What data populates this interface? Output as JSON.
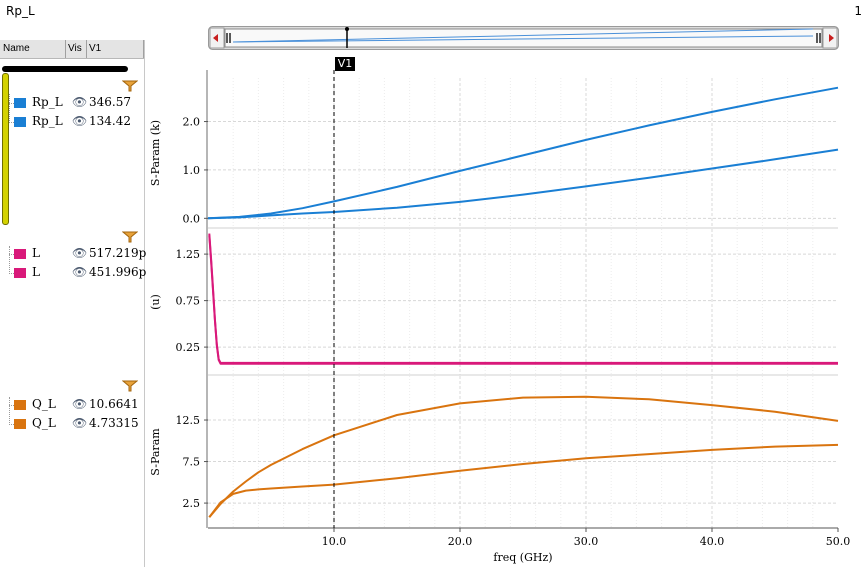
{
  "window": {
    "title": "Rp_L",
    "index_label": "1"
  },
  "table_header": {
    "name": "Name",
    "vis": "Vis",
    "v1": "V1"
  },
  "groups": [
    {
      "rows": [
        {
          "name": "Rp_L",
          "value": "346.57"
        },
        {
          "name": "Rp_L",
          "value": "134.42"
        }
      ]
    },
    {
      "rows": [
        {
          "name": "L",
          "value": "517.219p"
        },
        {
          "name": "L",
          "value": "451.996p"
        }
      ]
    },
    {
      "rows": [
        {
          "name": "Q_L",
          "value": "10.6641"
        },
        {
          "name": "Q_L",
          "value": "4.73315"
        }
      ]
    }
  ],
  "marker": {
    "label": "V1",
    "x": 10.0
  },
  "colors": {
    "blue": "#1a7fd4",
    "magenta": "#d9197a",
    "orange": "#d9740f",
    "yellow_bar": "#d4d200"
  },
  "icons": {
    "visibility": "eye-icon",
    "filter": "funnel-icon"
  },
  "chart_data": [
    {
      "type": "line",
      "ylabel": "S-Param (k)",
      "xlim": [
        0,
        50
      ],
      "ylim": [
        -0.2,
        2.9
      ],
      "yticks": [
        0.0,
        1.0,
        2.0
      ],
      "ytick_labels": [
        "0.0",
        "1.0",
        "2.0"
      ],
      "series": [
        {
          "name": "Rp_L",
          "x": [
            0,
            2.5,
            5,
            7.5,
            10,
            15,
            20,
            25,
            30,
            35,
            40,
            45,
            50
          ],
          "y": [
            0.0,
            0.03,
            0.1,
            0.21,
            0.35,
            0.65,
            0.98,
            1.3,
            1.62,
            1.92,
            2.2,
            2.46,
            2.7
          ]
        },
        {
          "name": "Rp_L",
          "x": [
            0,
            2.5,
            5,
            7.5,
            10,
            15,
            20,
            25,
            30,
            35,
            40,
            45,
            50
          ],
          "y": [
            0.0,
            0.02,
            0.06,
            0.1,
            0.13,
            0.22,
            0.34,
            0.49,
            0.66,
            0.84,
            1.03,
            1.22,
            1.42
          ]
        }
      ]
    },
    {
      "type": "line",
      "ylabel": "(u)",
      "xlim": [
        0,
        50
      ],
      "ylim": [
        -0.05,
        1.52
      ],
      "yticks": [
        0.25,
        0.75,
        1.25
      ],
      "ytick_labels": [
        "0.25",
        "0.75",
        "1.25"
      ],
      "series": [
        {
          "name": "L",
          "x": [
            0.1,
            0.25,
            0.4,
            0.55,
            0.7,
            0.85,
            1.0,
            50
          ],
          "y": [
            1.47,
            1.18,
            0.88,
            0.55,
            0.28,
            0.12,
            0.08,
            0.08
          ]
        },
        {
          "name": "L",
          "x": [
            0.1,
            0.25,
            0.4,
            0.55,
            0.7,
            0.85,
            1.0,
            50
          ],
          "y": [
            1.45,
            1.16,
            0.86,
            0.54,
            0.27,
            0.11,
            0.07,
            0.07
          ]
        }
      ]
    },
    {
      "type": "line",
      "ylabel": "S-Param",
      "xlabel": "freq (GHz)",
      "xlim": [
        0,
        50
      ],
      "ylim": [
        -0.5,
        17.8
      ],
      "yticks": [
        2.5,
        7.5,
        12.5
      ],
      "ytick_labels": [
        "2.5",
        "7.5",
        "12.5"
      ],
      "xticks": [
        10,
        20,
        30,
        40,
        50
      ],
      "xtick_labels": [
        "10.0",
        "20.0",
        "30.0",
        "40.0",
        "50.0"
      ],
      "series": [
        {
          "name": "Q_L",
          "x": [
            0.1,
            1,
            2,
            3,
            4,
            5,
            7.5,
            10,
            15,
            20,
            25,
            30,
            35,
            40,
            45,
            50
          ],
          "y": [
            0.8,
            2.4,
            3.9,
            5.1,
            6.2,
            7.1,
            9.0,
            10.66,
            13.1,
            14.5,
            15.2,
            15.3,
            15.0,
            14.3,
            13.5,
            12.4
          ]
        },
        {
          "name": "Q_L",
          "x": [
            0.1,
            1,
            2,
            3,
            4,
            5,
            7.5,
            10,
            15,
            20,
            25,
            30,
            35,
            40,
            45,
            50
          ],
          "y": [
            0.8,
            2.6,
            3.6,
            4.0,
            4.15,
            4.25,
            4.5,
            4.73,
            5.5,
            6.4,
            7.2,
            7.9,
            8.4,
            8.9,
            9.3,
            9.5
          ]
        }
      ]
    }
  ]
}
